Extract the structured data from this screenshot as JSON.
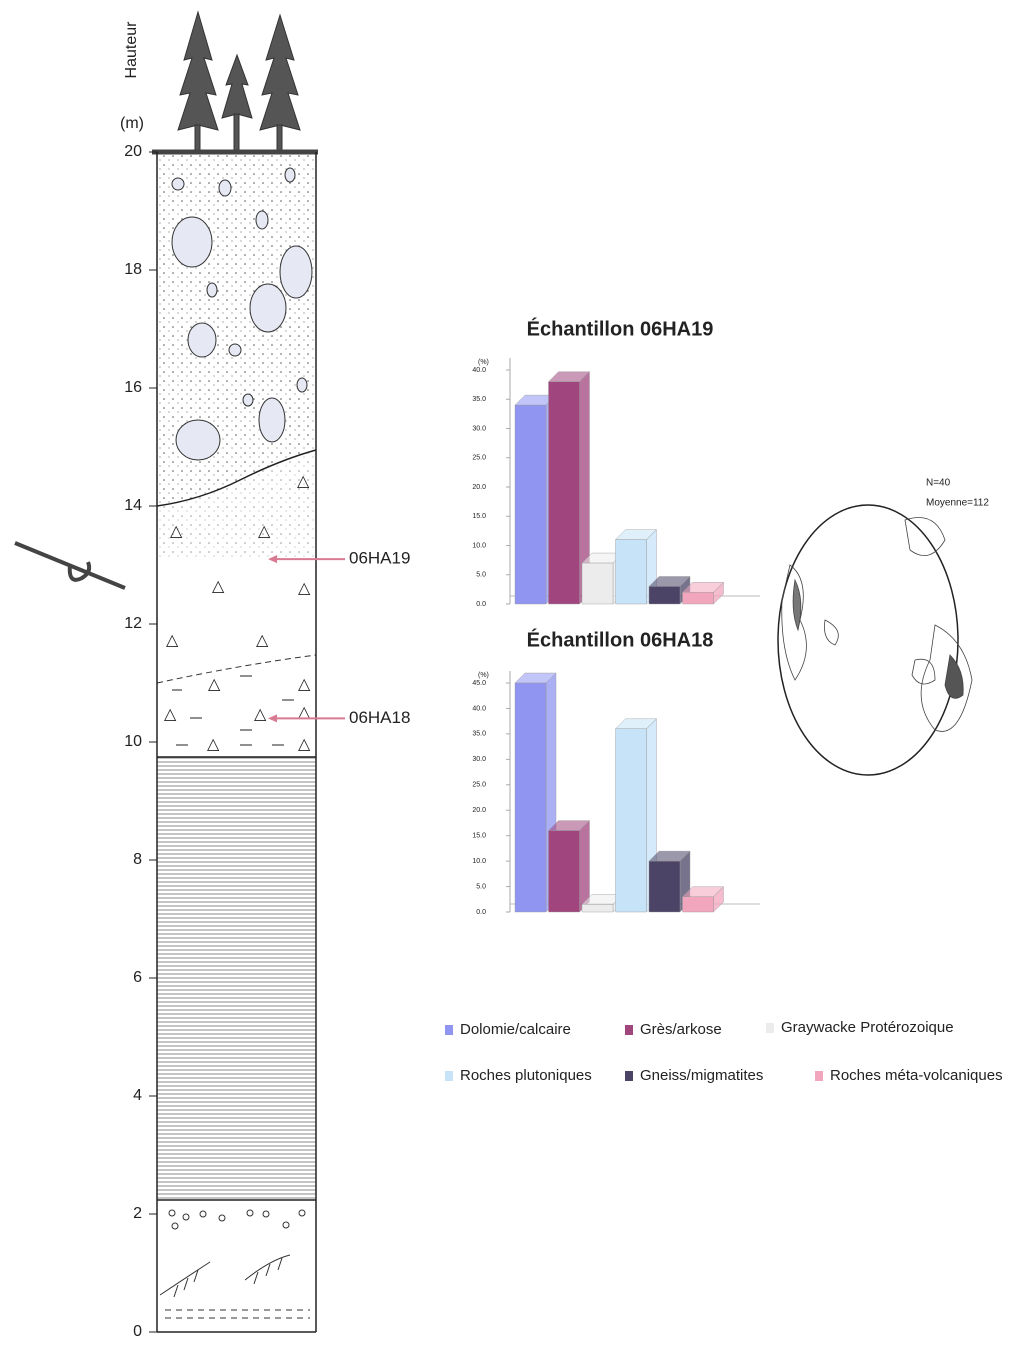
{
  "column": {
    "axis_title": "Hauteur",
    "unit": "(m)",
    "ylim": [
      0,
      20
    ],
    "yticks": [
      0,
      2,
      4,
      6,
      8,
      10,
      12,
      14,
      16,
      18,
      20
    ],
    "samples": [
      {
        "label": "06HA19",
        "height": 13.1
      },
      {
        "label": "06HA18",
        "height": 10.4
      }
    ]
  },
  "legend": [
    {
      "name": "Dolomie/calcaire",
      "color": "#8f95f0"
    },
    {
      "name": "Grès/arkose",
      "color": "#a0457e"
    },
    {
      "name": "Graywacke Protérozoique",
      "color": "#ececec"
    },
    {
      "name": "Roches plutoniques",
      "color": "#c7e3f8"
    },
    {
      "name": "Gneiss/migmatites",
      "color": "#4b4466"
    },
    {
      "name": "Roches méta-volcaniques",
      "color": "#f2a6be"
    }
  ],
  "chart_data": [
    {
      "type": "bar",
      "title": "Échantillon 06HA19",
      "y_label": "(%)",
      "values": [
        34,
        38,
        7,
        11,
        3,
        2
      ],
      "ylim": [
        0,
        40
      ],
      "yticks": [
        {
          "value": 0,
          "label": "0.0"
        },
        {
          "value": 5,
          "label": "5.0"
        },
        {
          "value": 10,
          "label": "10.0"
        },
        {
          "value": 15,
          "label": "15.0"
        },
        {
          "value": 20,
          "label": "20.0"
        },
        {
          "value": 25,
          "label": "25.0"
        },
        {
          "value": 30,
          "label": "30.0"
        },
        {
          "value": 35,
          "label": "35.0"
        },
        {
          "value": 40,
          "label": "40.0"
        }
      ]
    },
    {
      "type": "bar",
      "title": "Échantillon 06HA18",
      "y_label": "(%)",
      "values": [
        45,
        16,
        1.5,
        36,
        10,
        3
      ],
      "ylim": [
        0,
        45
      ],
      "yticks": [
        {
          "value": 0,
          "label": "0.0"
        },
        {
          "value": 5,
          "label": "5.0"
        },
        {
          "value": 10,
          "label": "10.0"
        },
        {
          "value": 15,
          "label": "15.0"
        },
        {
          "value": 20,
          "label": "20.0"
        },
        {
          "value": 25,
          "label": "25.0"
        },
        {
          "value": 30,
          "label": "30.0"
        },
        {
          "value": 35,
          "label": "35.0"
        },
        {
          "value": 40,
          "label": "40.0"
        },
        {
          "value": 45,
          "label": "45.0"
        }
      ]
    }
  ],
  "stereonet": {
    "n_label": "N=40",
    "mean_label": "Moyenne=112"
  }
}
